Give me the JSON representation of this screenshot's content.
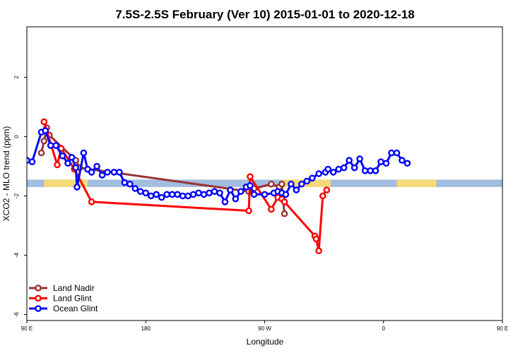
{
  "chart_data": {
    "type": "line",
    "title": "7.5S-2.5S February (Ver 10)   2015-01-01 to 2020-12-18",
    "xlabel": "Longitude",
    "ylabel": "XCO2 - MLO trend (ppm)",
    "xlim": [
      90,
      450
    ],
    "ylim": [
      -6.2,
      3.7
    ],
    "xticks": [
      {
        "value": 90,
        "label": "90 E"
      },
      {
        "value": 180,
        "label": "180"
      },
      {
        "value": 270,
        "label": "90 W"
      },
      {
        "value": 360,
        "label": "0"
      },
      {
        "value": 450,
        "label": "90 E"
      },
      {
        "value": 540,
        "label": "180"
      }
    ],
    "yticks": [
      {
        "value": -6,
        "label": "-6"
      },
      {
        "value": -4,
        "label": "-4"
      },
      {
        "value": -2,
        "label": "-2"
      },
      {
        "value": 0,
        "label": "0"
      },
      {
        "value": 2,
        "label": "2"
      }
    ],
    "band": {
      "y_min": -1.7,
      "y_max": -1.45,
      "sea_color": "#a3bde0",
      "land_color": "#f5d978"
    },
    "land_segments": [
      [
        103,
        136
      ],
      [
        282,
        320
      ],
      [
        370,
        400
      ],
      [
        463,
        496
      ]
    ],
    "legend": {
      "position": "bottom-left"
    },
    "series": [
      {
        "name": "Land Nadir",
        "color": "#993333",
        "x": [
          101,
          103,
          105,
          107,
          127,
          130,
          258,
          262,
          275,
          281,
          283,
          285
        ],
        "y": [
          -0.55,
          -0.15,
          0.3,
          0.05,
          -0.8,
          -1.05,
          -1.85,
          -1.75,
          -1.6,
          -1.7,
          -1.6,
          -2.6
        ]
      },
      {
        "name": "Land Glint",
        "color": "#ff0000",
        "x": [
          103,
          113,
          116,
          126,
          139,
          258,
          259,
          275,
          280,
          283,
          285,
          308,
          309,
          311,
          314,
          317
        ],
        "y": [
          0.5,
          -0.95,
          -0.4,
          -1.1,
          -2.2,
          -2.5,
          -1.35,
          -2.45,
          -2.05,
          -2.1,
          -2.2,
          -3.35,
          -3.45,
          -3.85,
          -2.0,
          -1.8
        ]
      },
      {
        "name": "Ocean Glint",
        "color": "#0000ff",
        "x": [
          90,
          94,
          101,
          104,
          108,
          112,
          117,
          121,
          124,
          127,
          128,
          133,
          136,
          139,
          143,
          147,
          151,
          156,
          160,
          164,
          168,
          172,
          176,
          180,
          184,
          188,
          192,
          196,
          200,
          204,
          208,
          212,
          216,
          220,
          224,
          228,
          232,
          236,
          240,
          244,
          248,
          252,
          256,
          259,
          262,
          270,
          277,
          280,
          283,
          286,
          290,
          294,
          298,
          302,
          306,
          311,
          316,
          318,
          322,
          326,
          330,
          334,
          338,
          342,
          346,
          350,
          354,
          358,
          362,
          366,
          370,
          374,
          378
        ],
        "y": [
          -0.8,
          -0.85,
          0.15,
          0.2,
          -0.3,
          -0.3,
          -0.65,
          -0.9,
          -0.7,
          -1.05,
          -1.7,
          -0.55,
          -1.1,
          -1.2,
          -1.0,
          -1.3,
          -1.2,
          -1.2,
          -1.2,
          -1.55,
          -1.6,
          -1.75,
          -1.85,
          -1.9,
          -2.0,
          -1.95,
          -2.05,
          -1.95,
          -1.95,
          -1.95,
          -2.0,
          -2.0,
          -1.95,
          -1.9,
          -1.95,
          -1.9,
          -1.85,
          -1.9,
          -2.2,
          -1.8,
          -2.1,
          -1.85,
          -1.7,
          -1.65,
          -1.95,
          -1.95,
          -1.9,
          -1.85,
          -1.9,
          -1.95,
          -1.6,
          -1.8,
          -1.6,
          -1.5,
          -1.4,
          -1.25,
          -1.2,
          -1.1,
          -1.2,
          -1.1,
          -1.05,
          -0.8,
          -1.05,
          -0.75,
          -1.15,
          -1.15,
          -1.15,
          -0.85,
          -0.9,
          -0.55,
          -0.55,
          -0.8,
          -0.9
        ]
      }
    ]
  }
}
